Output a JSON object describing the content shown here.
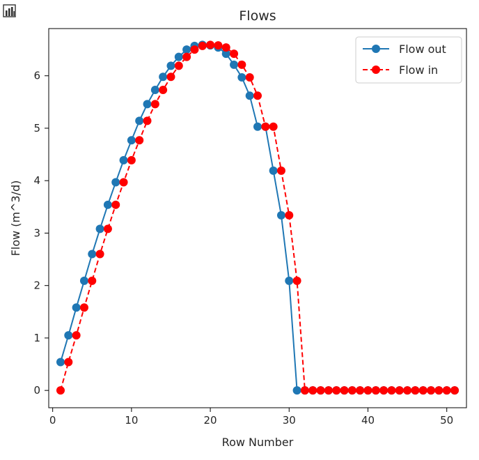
{
  "toolbar": {
    "icon": "bar-chart-icon"
  },
  "chart_data": {
    "type": "line",
    "title": "Flows",
    "xlabel": "Row Number",
    "ylabel": "Flow (m^3/d)",
    "xlim": [
      -0.5,
      52.5
    ],
    "ylim": [
      -0.33,
      6.9
    ],
    "xticks": [
      0,
      10,
      20,
      30,
      40,
      50
    ],
    "yticks": [
      0,
      1,
      2,
      3,
      4,
      5,
      6
    ],
    "grid": false,
    "legend_position": "top-right",
    "x": [
      1,
      2,
      3,
      4,
      5,
      6,
      7,
      8,
      9,
      10,
      11,
      12,
      13,
      14,
      15,
      16,
      17,
      18,
      19,
      20,
      21,
      22,
      23,
      24,
      25,
      26,
      27,
      28,
      29,
      30,
      31,
      32,
      33,
      34,
      35,
      36,
      37,
      38,
      39,
      40,
      41,
      42,
      43,
      44,
      45,
      46,
      47,
      48,
      49,
      50,
      51
    ],
    "series": [
      {
        "name": "Flow out",
        "color": "#1f77b4",
        "linestyle": "solid",
        "marker": "circle",
        "values": [
          0.54,
          1.05,
          1.58,
          2.09,
          2.6,
          3.08,
          3.54,
          3.97,
          4.39,
          4.77,
          5.14,
          5.46,
          5.73,
          5.98,
          6.19,
          6.36,
          6.5,
          6.57,
          6.59,
          6.58,
          6.54,
          6.42,
          6.21,
          5.97,
          5.62,
          5.03,
          5.03,
          4.19,
          3.34,
          2.09,
          0,
          0,
          0,
          0,
          0,
          0,
          0,
          0,
          0,
          0,
          0,
          0,
          0,
          0,
          0,
          0,
          0,
          0,
          0,
          0,
          0
        ]
      },
      {
        "name": "Flow in",
        "color": "#ff0000",
        "linestyle": "dashed",
        "marker": "circle",
        "values": [
          0,
          0.54,
          1.05,
          1.58,
          2.09,
          2.6,
          3.08,
          3.54,
          3.97,
          4.39,
          4.77,
          5.14,
          5.46,
          5.73,
          5.98,
          6.19,
          6.36,
          6.5,
          6.57,
          6.59,
          6.58,
          6.54,
          6.42,
          6.21,
          5.97,
          5.62,
          5.03,
          5.03,
          4.19,
          3.34,
          2.09,
          0,
          0,
          0,
          0,
          0,
          0,
          0,
          0,
          0,
          0,
          0,
          0,
          0,
          0,
          0,
          0,
          0,
          0,
          0,
          0
        ]
      }
    ]
  }
}
